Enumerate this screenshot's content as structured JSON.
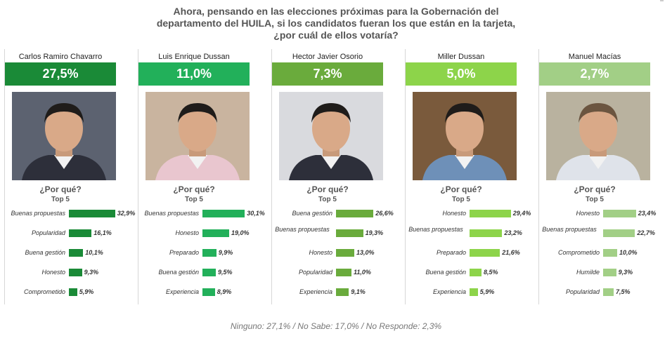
{
  "title": {
    "line1": "Ahora, pensando  en las elecciones próximas para la Gobernación  del",
    "line2": "departamento  del HUILA, si los candidatos  fueran los que están en la tarjeta,",
    "line3": "¿por cuál de ellos votaría?"
  },
  "why_label": "¿Por qué?",
  "top5_label": "Top 5",
  "footer": "Ninguno: 27,1% / No Sabe: 17,0% / No Responde: 2,3%",
  "chart_data": {
    "type": "bar",
    "candidates": [
      {
        "name": "Carlos Ramiro Chavarro",
        "vote": "27,5%",
        "color": "#1a8a37",
        "photo_bg": "#5c6270",
        "reasons": [
          {
            "label": "Buenas propuestas",
            "value": 32.9,
            "display": "32,9%"
          },
          {
            "label": "Popularidad",
            "value": 16.1,
            "display": "16,1%"
          },
          {
            "label": "Buena gestión",
            "value": 10.1,
            "display": "10,1%"
          },
          {
            "label": "Honesto",
            "value": 9.3,
            "display": "9,3%"
          },
          {
            "label": "Comprometido",
            "value": 5.9,
            "display": "5,9%"
          }
        ]
      },
      {
        "name": "Luis Enrique Dussan",
        "vote": "11,0%",
        "color": "#22b05a",
        "photo_bg": "#c9b49f",
        "reasons": [
          {
            "label": "Buenas propuestas",
            "value": 30.1,
            "display": "30,1%"
          },
          {
            "label": "Honesto",
            "value": 19.0,
            "display": "19,0%"
          },
          {
            "label": "Preparado",
            "value": 9.9,
            "display": "9,9%"
          },
          {
            "label": "Buena gestión",
            "value": 9.5,
            "display": "9,5%"
          },
          {
            "label": "Experiencia",
            "value": 8.9,
            "display": "8,9%"
          }
        ]
      },
      {
        "name": "Hector Javier Osorio",
        "vote": "7,3%",
        "color": "#6aab3c",
        "photo_bg": "#d9dade",
        "reasons": [
          {
            "label": "Buena gestión",
            "value": 26.6,
            "display": "26,6%"
          },
          {
            "label": "Buenas propuestas",
            "value": 19.3,
            "display": "19,3%"
          },
          {
            "label": "Honesto",
            "value": 13.0,
            "display": "13,0%"
          },
          {
            "label": "Popularidad",
            "value": 11.0,
            "display": "11,0%"
          },
          {
            "label": "Experiencia",
            "value": 9.1,
            "display": "9,1%"
          }
        ]
      },
      {
        "name": "Miller Dussan",
        "vote": "5,0%",
        "color": "#8dd44a",
        "photo_bg": "#7a5a3c",
        "reasons": [
          {
            "label": "Honesto",
            "value": 29.4,
            "display": "29,4%"
          },
          {
            "label": "Buenas propuestas",
            "value": 23.2,
            "display": "23,2%"
          },
          {
            "label": "Preparado",
            "value": 21.6,
            "display": "21,6%"
          },
          {
            "label": "Buena gestión",
            "value": 8.5,
            "display": "8,5%"
          },
          {
            "label": "Experiencia",
            "value": 5.9,
            "display": "5,9%"
          }
        ]
      },
      {
        "name": "Manuel Macías",
        "vote": "2,7%",
        "color": "#a2cf86",
        "photo_bg": "#b9b29f",
        "reasons": [
          {
            "label": "Honesto",
            "value": 23.4,
            "display": "23,4%"
          },
          {
            "label": "Buenas propuestas",
            "value": 22.7,
            "display": "22,7%"
          },
          {
            "label": "Comprometido",
            "value": 10.0,
            "display": "10,0%"
          },
          {
            "label": "Humilde",
            "value": 9.3,
            "display": "9,3%"
          },
          {
            "label": "Popularidad",
            "value": 7.5,
            "display": "7,5%"
          }
        ]
      }
    ]
  }
}
